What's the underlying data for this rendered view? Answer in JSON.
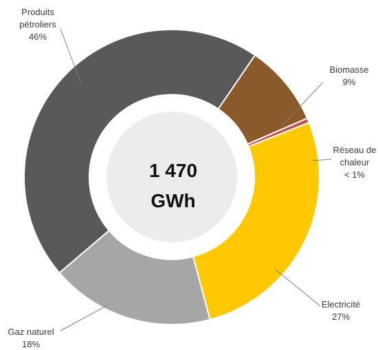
{
  "chart_data": {
    "type": "pie",
    "donut": true,
    "center_total": {
      "value": "1 470",
      "unit": "GWh"
    },
    "slices": [
      {
        "name": "Produits pétroliers",
        "label_lines": [
          "Produits",
          "pétroliers"
        ],
        "value_label": "46%",
        "value": 46,
        "color": "#595959"
      },
      {
        "name": "Biomasse",
        "label_lines": [
          "Biomasse"
        ],
        "value_label": "9%",
        "value": 9,
        "color": "#8B5A2B"
      },
      {
        "name": "Réseau de chaleur",
        "label_lines": [
          "Réseau de",
          "chaleur"
        ],
        "value_label": "< 1%",
        "value": 0.5,
        "color": "#C0504D"
      },
      {
        "name": "Electricité",
        "label_lines": [
          "Electricité"
        ],
        "value_label": "27%",
        "value": 27,
        "color": "#FFC800"
      },
      {
        "name": "Gaz naturel",
        "label_lines": [
          "Gaz naturel"
        ],
        "value_label": "18%",
        "value": 18,
        "color": "#A6A6A6"
      }
    ],
    "colors": {
      "ring_gap": "#ffffff",
      "center_fill": "#EDEBEB",
      "leader": "#7f7f7f"
    }
  }
}
